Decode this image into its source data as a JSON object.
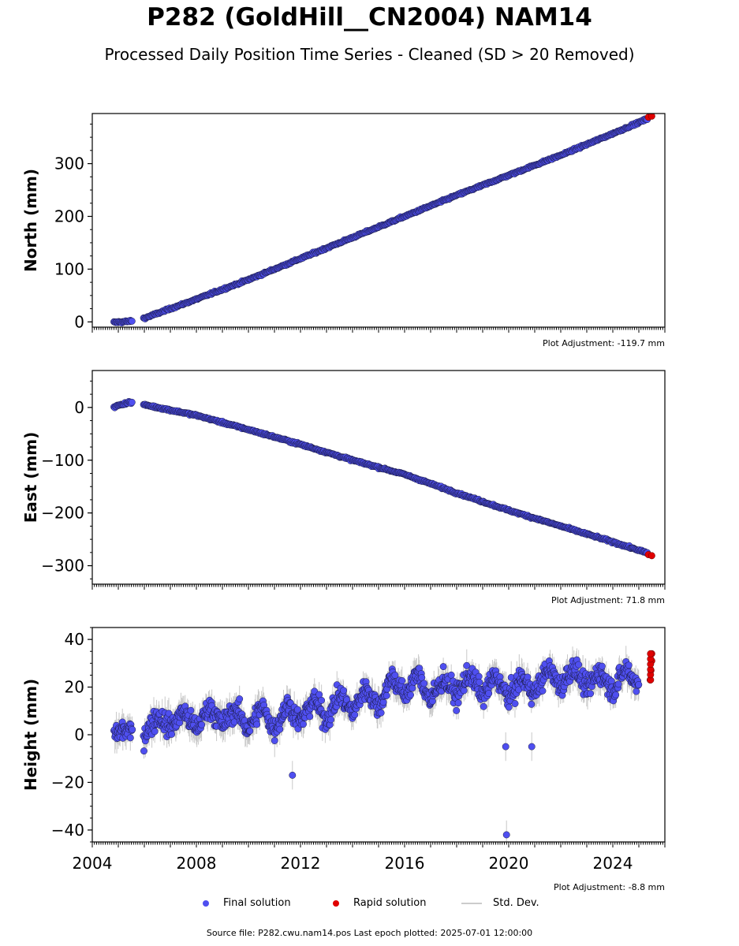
{
  "title": "P282 (GoldHill__CN2004) NAM14",
  "subtitle": "Processed Daily Position Time Series - Cleaned (SD > 20 Removed)",
  "colors": {
    "final": "#4f4ff0",
    "rapid": "#e00000",
    "stddev": "#c8c8c8",
    "edge": "#1a1a40"
  },
  "legend": {
    "final": "Final solution",
    "rapid": "Rapid solution",
    "stddev": "Std. Dev."
  },
  "footer": "Source file: P282.cwu.nam14.pos  Last epoch plotted: 2025-07-01 12:00:00",
  "chart_data": [
    {
      "type": "scatter",
      "ylabel": "North (mm)",
      "adjustment": "Plot Adjustment: -119.7 mm",
      "xlim": [
        "2004-01-01",
        "2026-01-01"
      ],
      "ylim": [
        -10,
        395
      ],
      "yticks": [
        0,
        100,
        200,
        300
      ],
      "ytick_labels": [
        "0",
        "100",
        "200",
        "300"
      ],
      "grid": false,
      "series": [
        {
          "kind": "final",
          "points": [
            [
              "2004-11-01",
              -1
            ],
            [
              "2005-03-01",
              0
            ],
            [
              "2005-06-01",
              1
            ],
            [
              "2006-01-01",
              7
            ],
            [
              "2008-01-01",
              43
            ],
            [
              "2010-01-01",
              80
            ],
            [
              "2012-01-01",
              120
            ],
            [
              "2014-01-01",
              160
            ],
            [
              "2016-01-01",
              200
            ],
            [
              "2018-01-01",
              240
            ],
            [
              "2020-01-01",
              278
            ],
            [
              "2022-01-01",
              316
            ],
            [
              "2024-01-01",
              357
            ],
            [
              "2025-05-01",
              385
            ]
          ]
        },
        {
          "kind": "rapid",
          "points": [
            [
              "2025-05-15",
              388
            ],
            [
              "2025-07-01",
              390
            ]
          ]
        }
      ]
    },
    {
      "type": "scatter",
      "ylabel": "East (mm)",
      "adjustment": "Plot Adjustment: 71.8 mm",
      "xlim": [
        "2004-01-01",
        "2026-01-01"
      ],
      "ylim": [
        -335,
        70
      ],
      "yticks": [
        0,
        -100,
        -200,
        -300
      ],
      "ytick_labels": [
        "0",
        "−100",
        "−200",
        "−300"
      ],
      "grid": false,
      "series": [
        {
          "kind": "final",
          "points": [
            [
              "2004-11-01",
              1
            ],
            [
              "2005-03-01",
              6
            ],
            [
              "2005-06-01",
              10
            ],
            [
              "2006-01-01",
              5
            ],
            [
              "2008-01-01",
              -15
            ],
            [
              "2010-01-01",
              -42
            ],
            [
              "2012-01-01",
              -70
            ],
            [
              "2014-01-01",
              -100
            ],
            [
              "2016-01-01",
              -127
            ],
            [
              "2018-01-01",
              -162
            ],
            [
              "2020-01-01",
              -195
            ],
            [
              "2022-01-01",
              -225
            ],
            [
              "2024-01-01",
              -255
            ],
            [
              "2025-05-01",
              -276
            ]
          ]
        },
        {
          "kind": "rapid",
          "points": [
            [
              "2025-05-15",
              -279
            ],
            [
              "2025-07-01",
              -281
            ]
          ]
        }
      ]
    },
    {
      "type": "scatter",
      "ylabel": "Height (mm)",
      "adjustment": "Plot Adjustment: -8.8 mm",
      "xlim": [
        "2004-01-01",
        "2026-01-01"
      ],
      "ylim": [
        -45,
        45
      ],
      "yticks": [
        40,
        20,
        0,
        -20,
        -40
      ],
      "ytick_labels": [
        "40",
        "20",
        "0",
        "−20",
        "−40"
      ],
      "xticks": [
        "2004",
        "2008",
        "2012",
        "2016",
        "2020",
        "2024"
      ],
      "grid": false,
      "series": [
        {
          "kind": "final",
          "points": [
            [
              "2004-11-01",
              0
            ],
            [
              "2005-03-01",
              2
            ],
            [
              "2006-01-01",
              0
            ],
            [
              "2006-07-01",
              8
            ],
            [
              "2007-01-01",
              3
            ],
            [
              "2007-07-01",
              10
            ],
            [
              "2008-01-01",
              2
            ],
            [
              "2008-07-01",
              12
            ],
            [
              "2009-01-01",
              4
            ],
            [
              "2009-07-01",
              11
            ],
            [
              "2010-01-01",
              2
            ],
            [
              "2010-07-01",
              12
            ],
            [
              "2011-01-01",
              2
            ],
            [
              "2011-07-01",
              13
            ],
            [
              "2012-01-01",
              5
            ],
            [
              "2012-07-01",
              15
            ],
            [
              "2013-01-01",
              6
            ],
            [
              "2013-07-01",
              17
            ],
            [
              "2014-01-01",
              9
            ],
            [
              "2014-07-01",
              20
            ],
            [
              "2015-01-01",
              11
            ],
            [
              "2015-07-01",
              25
            ],
            [
              "2016-01-01",
              16
            ],
            [
              "2016-07-01",
              26
            ],
            [
              "2017-01-01",
              14
            ],
            [
              "2017-07-01",
              24
            ],
            [
              "2018-01-01",
              16
            ],
            [
              "2018-07-01",
              26
            ],
            [
              "2019-01-01",
              16
            ],
            [
              "2019-07-01",
              25
            ],
            [
              "2020-01-01",
              15
            ],
            [
              "2020-07-01",
              24
            ],
            [
              "2021-01-01",
              17
            ],
            [
              "2021-07-01",
              28
            ],
            [
              "2022-01-01",
              20
            ],
            [
              "2022-07-01",
              29
            ],
            [
              "2023-01-01",
              19
            ],
            [
              "2023-07-01",
              27
            ],
            [
              "2024-01-01",
              18
            ],
            [
              "2024-07-01",
              28
            ],
            [
              "2025-01-01",
              20
            ],
            [
              "2019-11-20",
              -5
            ],
            [
              "2020-11-20",
              -5
            ],
            [
              "2011-09-10",
              -17
            ],
            [
              "2019-12-01",
              -42
            ]
          ]
        },
        {
          "kind": "rapid",
          "points": [
            [
              "2025-06-10",
              23
            ],
            [
              "2025-06-20",
              27
            ],
            [
              "2025-07-01",
              31
            ],
            [
              "2025-07-01",
              34
            ]
          ]
        }
      ]
    }
  ]
}
